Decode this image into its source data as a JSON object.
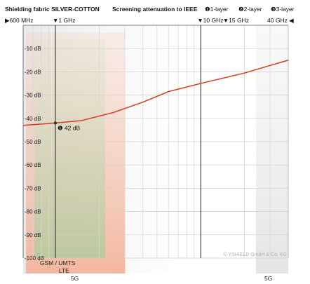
{
  "chart_data": {
    "type": "line",
    "title": "Shielding fabric SILVER-COTTON",
    "subtitle": "Screening attenuation to IEEE",
    "legend": [
      {
        "marker": "❶",
        "label": "1-layer"
      },
      {
        "marker": "❷",
        "label": "2-layer"
      },
      {
        "marker": "❸",
        "label": "3-layer"
      }
    ],
    "x_scale": "log",
    "x_range_mhz": [
      600,
      40000
    ],
    "frequency_markers": [
      {
        "label": "600 MHz",
        "mhz": 600,
        "arrow": "▶"
      },
      {
        "label": "1 GHz",
        "mhz": 1000,
        "arrow": "▼"
      },
      {
        "label": "10 GHz",
        "mhz": 10000,
        "arrow": "▼"
      },
      {
        "label": "15 GHz",
        "mhz": 15000,
        "arrow": "▼"
      },
      {
        "label": "40 GHz",
        "mhz": 40000,
        "arrow": "◀"
      }
    ],
    "y_range_db": [
      -100,
      0
    ],
    "y_ticks": [
      {
        "value": -10,
        "label": "-10 dB"
      },
      {
        "value": -20,
        "label": "-20 dB"
      },
      {
        "value": -30,
        "label": "-30 dB"
      },
      {
        "value": -40,
        "label": "-40 dB"
      },
      {
        "value": -50,
        "label": "-50 dB"
      },
      {
        "value": -60,
        "label": "-60 dB"
      },
      {
        "value": -70,
        "label": "-70 dB"
      },
      {
        "value": -80,
        "label": "-80 dB"
      },
      {
        "value": -90,
        "label": "-90 dB"
      },
      {
        "value": -100,
        "label": "-100 dB"
      }
    ],
    "grid": true,
    "series": [
      {
        "color": "#d2472b",
        "x_mhz": [
          600,
          1000,
          1500,
          2500,
          4000,
          6000,
          10000,
          20000,
          40000
        ],
        "y_db": [
          -43,
          -42,
          -41,
          -37.5,
          -33,
          -28.5,
          -25,
          -20.5,
          -15
        ]
      }
    ],
    "annotation": {
      "marker": "❶",
      "label": "42 dB",
      "x_mhz": 1000,
      "y_db": -42
    },
    "bands": [
      {
        "label": "GSM / UMTS",
        "from_mhz": 700,
        "to_mhz": 2200,
        "color": "#d6dcc6"
      },
      {
        "label": "LTE",
        "from_mhz": 700,
        "to_mhz": 2700,
        "color": "#f5c2ad"
      },
      {
        "label": "5G",
        "from_mhz": 600,
        "to_mhz": 6000,
        "color": "#e4e4e4"
      },
      {
        "label": "5G",
        "from_mhz": 24000,
        "to_mhz": 40000,
        "color": "#ececec"
      }
    ],
    "watermark": "© YSHIELD GmbH & Co. KG"
  }
}
